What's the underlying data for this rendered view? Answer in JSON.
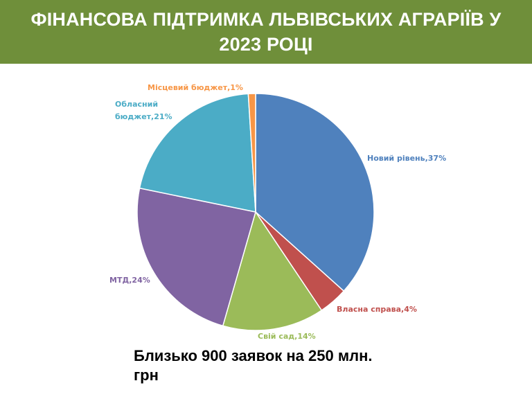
{
  "header": {
    "title_line1": "ФІНАНСОВА ПІДТРИМКА ЛЬВІВСЬКИХ АГРАРІЇВ У",
    "title_line2": "2023 РОЦІ"
  },
  "chart_data": {
    "type": "pie",
    "unit": "%",
    "slices": [
      {
        "label": "Новий рівень,37%",
        "value": 37,
        "color": "#4f81bd"
      },
      {
        "label": "Власна справа,4%",
        "value": 4,
        "color": "#c0504d"
      },
      {
        "label": "Свій сад,14%",
        "value": 14,
        "color": "#9bbb59"
      },
      {
        "label": "МТД,24%",
        "value": 24,
        "color": "#8064a2"
      },
      {
        "label": "Обласний бюджет,21%",
        "value": 21,
        "color": "#4bacc6"
      },
      {
        "label": "Місцевий бюджет,1%",
        "value": 1,
        "color": "#f79646"
      }
    ],
    "label_colors": [
      "#4f81bd",
      "#c0504d",
      "#9bbb59",
      "#8064a2",
      "#4bacc6",
      "#f79646"
    ]
  },
  "note": {
    "text_line1": "Близько 900 заявок на 250 млн.",
    "text_line2": "грн"
  }
}
